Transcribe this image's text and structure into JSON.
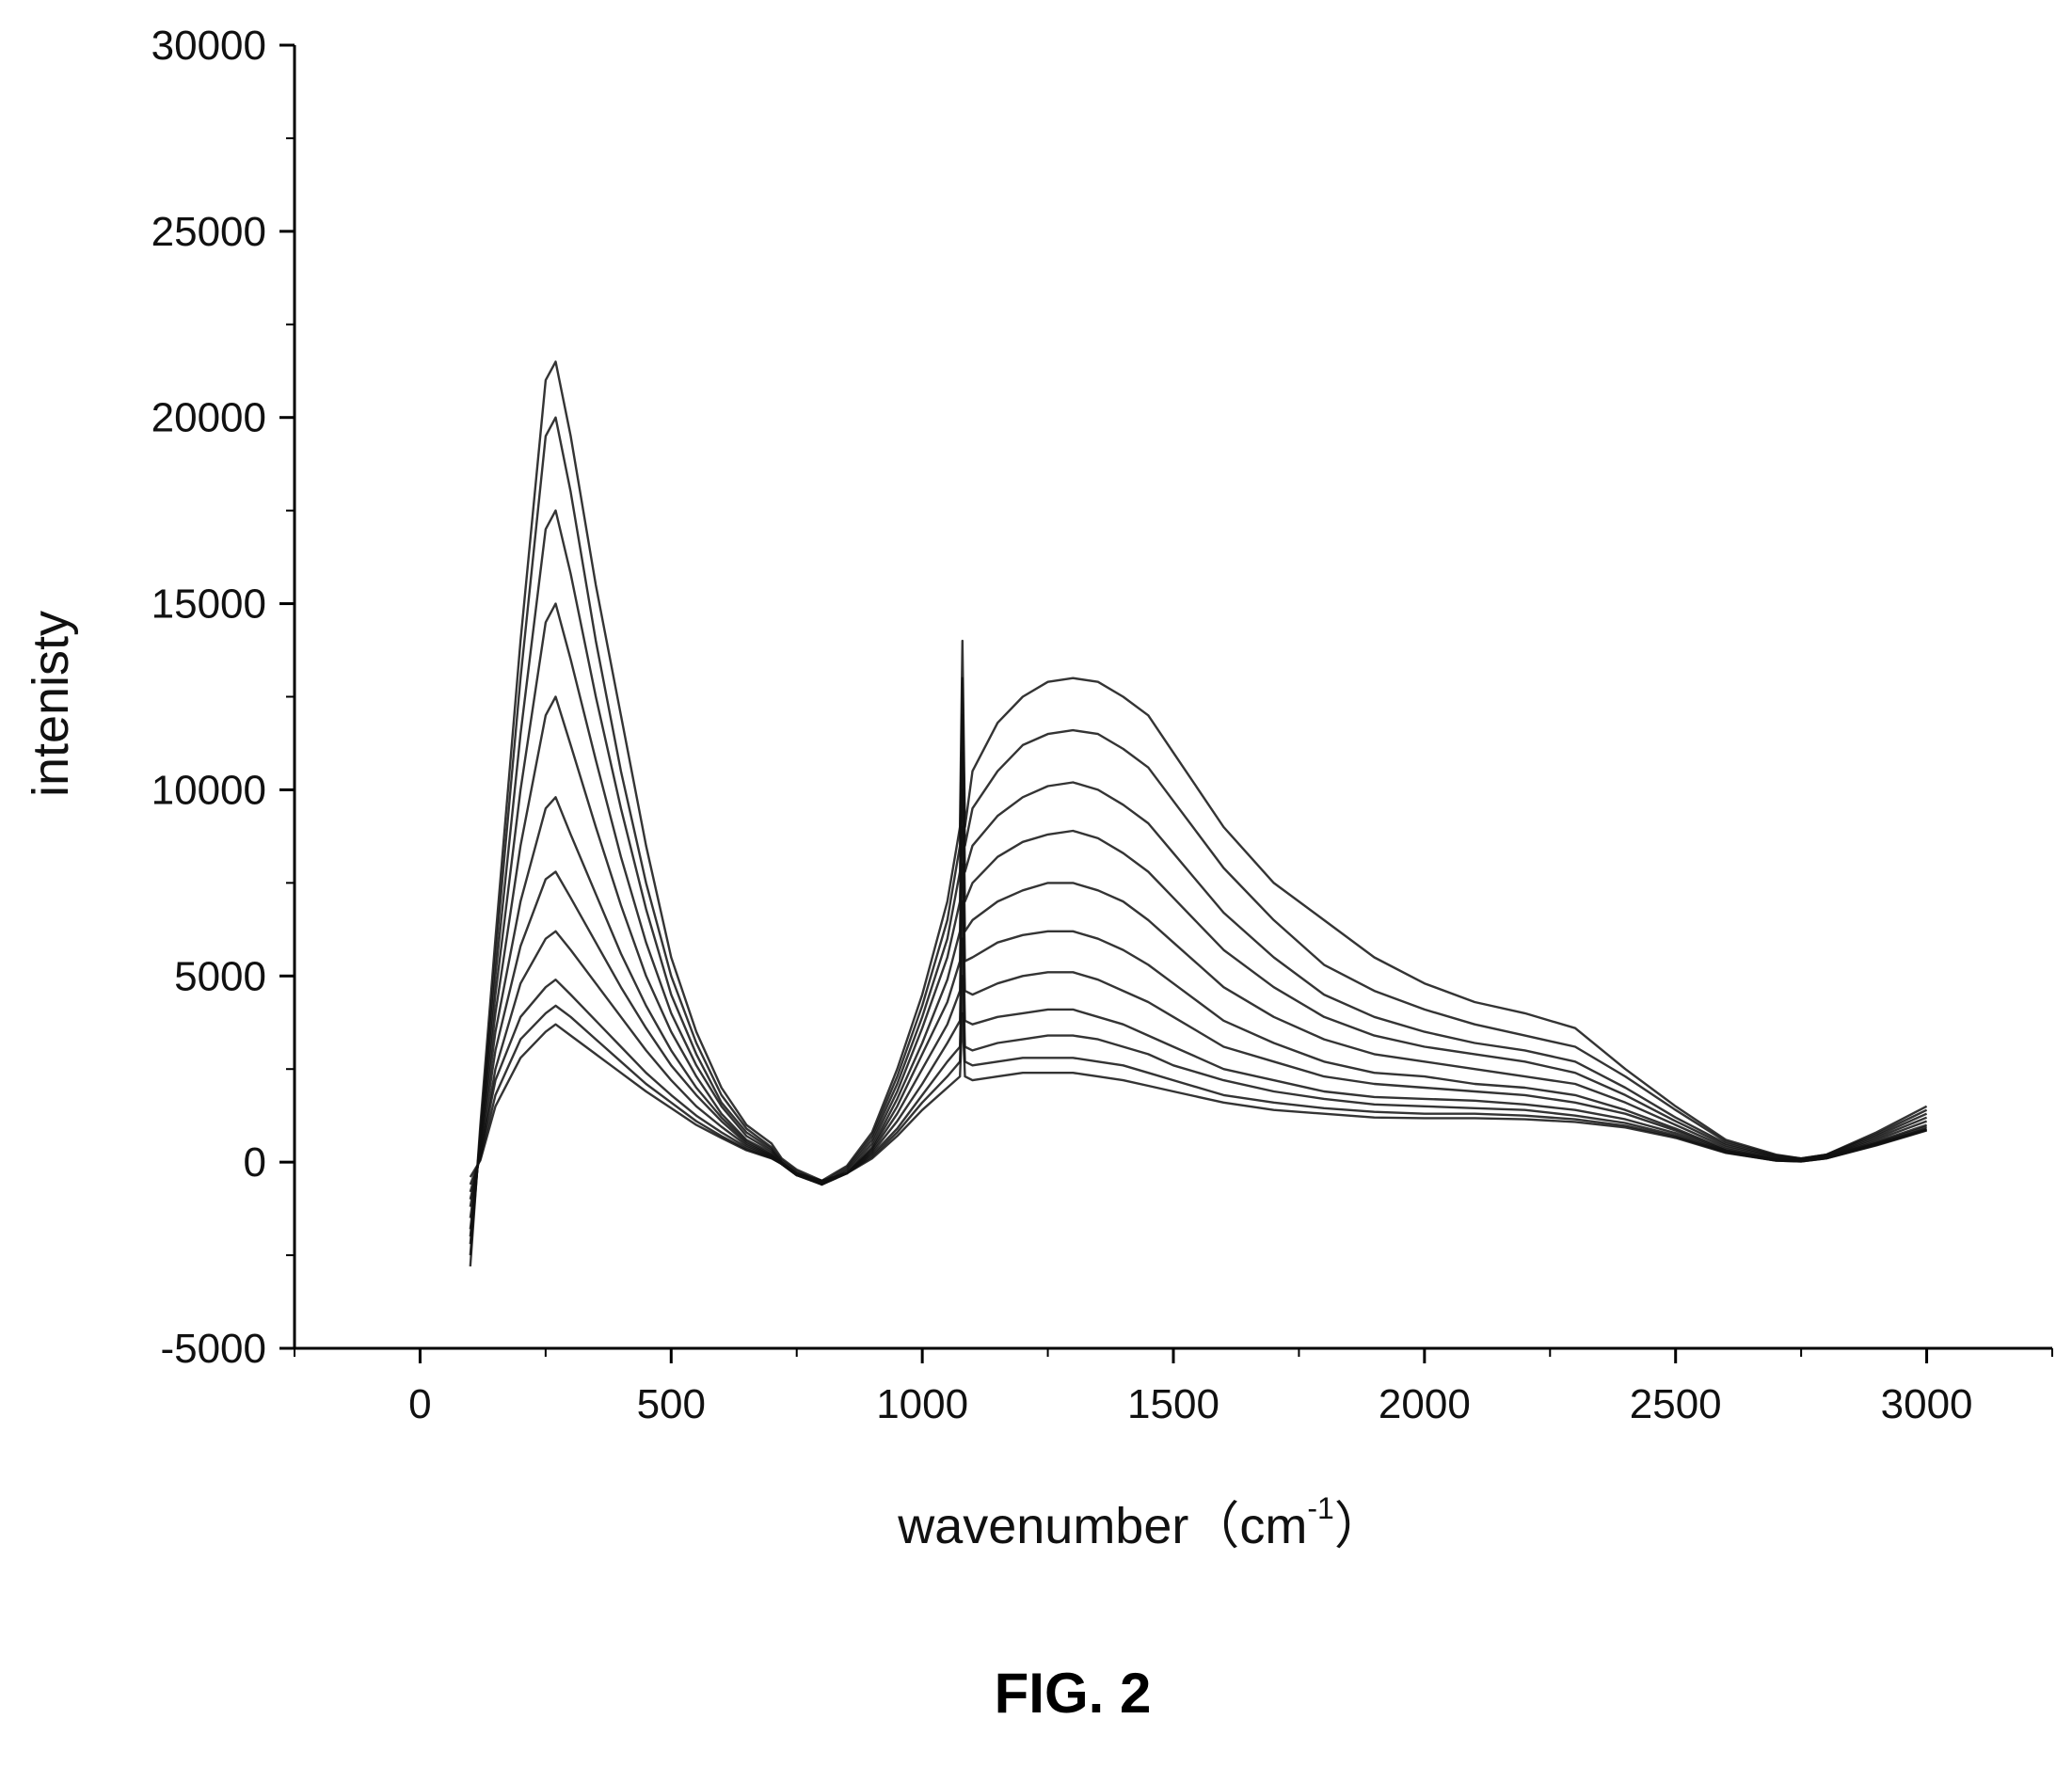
{
  "chart_data": {
    "type": "line",
    "title": "",
    "xlabel": "wavenumber（cm",
    "xlabel_sup": "-1",
    "xlabel_close": "）",
    "ylabel": "intenisty",
    "xlim": [
      -250,
      3250
    ],
    "ylim": [
      -5000,
      30000
    ],
    "x_ticks": [
      0,
      500,
      1000,
      1500,
      2000,
      2500,
      3000
    ],
    "y_ticks": [
      -5000,
      0,
      5000,
      10000,
      15000,
      20000,
      25000,
      30000
    ],
    "grid": false,
    "x": [
      100,
      120,
      150,
      200,
      250,
      270,
      300,
      350,
      400,
      450,
      500,
      550,
      600,
      650,
      700,
      720,
      750,
      800,
      850,
      900,
      950,
      1000,
      1050,
      1075,
      1080,
      1085,
      1100,
      1150,
      1200,
      1250,
      1300,
      1350,
      1400,
      1450,
      1500,
      1550,
      1600,
      1700,
      1800,
      1900,
      2000,
      2100,
      2200,
      2300,
      2400,
      2500,
      2600,
      2700,
      2750,
      2800,
      2900,
      3000
    ],
    "series": [
      {
        "values": [
          -2800,
          1000,
          6000,
          14000,
          21000,
          21500,
          19500,
          15500,
          12000,
          8500,
          5500,
          3500,
          2000,
          1000,
          500,
          100,
          -200,
          -500,
          -100,
          800,
          2500,
          4500,
          7000,
          9000,
          14000,
          9000,
          10500,
          11800,
          12500,
          12900,
          13000,
          12900,
          12500,
          12000,
          11000,
          10000,
          9000,
          7500,
          6500,
          5500,
          4800,
          4300,
          4000,
          3600,
          2500,
          1500,
          600,
          200,
          100,
          200,
          800,
          1500
        ]
      },
      {
        "values": [
          -2500,
          800,
          5500,
          13000,
          19500,
          20000,
          18000,
          14000,
          10500,
          7500,
          5000,
          3200,
          1800,
          900,
          400,
          50,
          -250,
          -550,
          -150,
          700,
          2300,
          4200,
          6500,
          8500,
          13000,
          8500,
          9500,
          10500,
          11200,
          11500,
          11600,
          11500,
          11100,
          10600,
          9700,
          8800,
          7900,
          6500,
          5300,
          4600,
          4100,
          3700,
          3400,
          3100,
          2300,
          1400,
          550,
          180,
          100,
          200,
          750,
          1400
        ]
      },
      {
        "values": [
          -2200,
          700,
          5000,
          11500,
          17000,
          17500,
          15800,
          12500,
          9500,
          6800,
          4500,
          2900,
          1600,
          800,
          350,
          0,
          -300,
          -600,
          -200,
          600,
          2100,
          3900,
          6000,
          7800,
          12000,
          7800,
          8500,
          9300,
          9800,
          10100,
          10200,
          10000,
          9600,
          9100,
          8300,
          7500,
          6700,
          5500,
          4500,
          3900,
          3500,
          3200,
          3000,
          2700,
          2000,
          1200,
          500,
          150,
          80,
          180,
          700,
          1300
        ]
      },
      {
        "values": [
          -2000,
          600,
          4500,
          10000,
          14500,
          15000,
          13500,
          10800,
          8200,
          5900,
          4000,
          2600,
          1500,
          700,
          300,
          0,
          -300,
          -600,
          -250,
          500,
          1900,
          3600,
          5500,
          7000,
          11000,
          7000,
          7500,
          8200,
          8600,
          8800,
          8900,
          8700,
          8300,
          7800,
          7100,
          6400,
          5700,
          4700,
          3900,
          3400,
          3100,
          2900,
          2700,
          2400,
          1800,
          1100,
          450,
          130,
          60,
          160,
          650,
          1200
        ]
      },
      {
        "values": [
          -1800,
          500,
          4000,
          8500,
          12000,
          12500,
          11200,
          9000,
          6900,
          5000,
          3500,
          2300,
          1300,
          600,
          250,
          -50,
          -350,
          -600,
          -300,
          400,
          1700,
          3200,
          4900,
          6200,
          10000,
          6200,
          6500,
          7000,
          7300,
          7500,
          7500,
          7300,
          7000,
          6500,
          5900,
          5300,
          4700,
          3900,
          3300,
          2900,
          2700,
          2500,
          2300,
          2100,
          1600,
          1000,
          400,
          100,
          50,
          150,
          600,
          1100
        ]
      },
      {
        "values": [
          -1500,
          400,
          3500,
          7000,
          9500,
          9800,
          8800,
          7200,
          5600,
          4200,
          3000,
          2000,
          1200,
          550,
          200,
          -50,
          -350,
          -600,
          -300,
          350,
          1500,
          2900,
          4300,
          5400,
          9000,
          5400,
          5500,
          5900,
          6100,
          6200,
          6200,
          6000,
          5700,
          5300,
          4800,
          4300,
          3800,
          3200,
          2700,
          2400,
          2300,
          2100,
          2000,
          1800,
          1400,
          900,
          350,
          80,
          40,
          140,
          550,
          1000
        ]
      },
      {
        "values": [
          -1200,
          300,
          3000,
          5800,
          7600,
          7800,
          7100,
          5900,
          4700,
          3600,
          2600,
          1800,
          1100,
          500,
          180,
          -50,
          -350,
          -550,
          -300,
          300,
          1300,
          2500,
          3700,
          4600,
          8000,
          4600,
          4500,
          4800,
          5000,
          5100,
          5100,
          4900,
          4600,
          4300,
          3900,
          3500,
          3100,
          2700,
          2300,
          2100,
          2000,
          1900,
          1800,
          1600,
          1300,
          850,
          320,
          70,
          40,
          130,
          520,
          950
        ]
      },
      {
        "values": [
          -1000,
          200,
          2500,
          4800,
          6000,
          6200,
          5700,
          4800,
          3900,
          3000,
          2200,
          1500,
          950,
          450,
          150,
          -50,
          -350,
          -550,
          -300,
          250,
          1100,
          2100,
          3200,
          3800,
          7000,
          3800,
          3700,
          3900,
          4000,
          4100,
          4100,
          3900,
          3700,
          3400,
          3100,
          2800,
          2500,
          2200,
          1900,
          1750,
          1700,
          1650,
          1550,
          1400,
          1150,
          780,
          300,
          60,
          30,
          120,
          500,
          900
        ]
      },
      {
        "values": [
          -800,
          150,
          2200,
          3900,
          4700,
          4900,
          4500,
          3800,
          3100,
          2400,
          1800,
          1250,
          800,
          400,
          130,
          -50,
          -300,
          -500,
          -300,
          200,
          900,
          1800,
          2700,
          3100,
          6000,
          3100,
          3000,
          3200,
          3300,
          3400,
          3400,
          3300,
          3100,
          2900,
          2600,
          2400,
          2200,
          1900,
          1700,
          1550,
          1500,
          1450,
          1400,
          1250,
          1050,
          720,
          280,
          50,
          30,
          110,
          480,
          880
        ]
      },
      {
        "values": [
          -600,
          100,
          1800,
          3300,
          4000,
          4200,
          3900,
          3300,
          2700,
          2100,
          1600,
          1100,
          700,
          350,
          110,
          -50,
          -300,
          -500,
          -300,
          150,
          800,
          1600,
          2300,
          2700,
          5000,
          2700,
          2600,
          2700,
          2800,
          2800,
          2800,
          2700,
          2600,
          2400,
          2200,
          2000,
          1800,
          1600,
          1450,
          1350,
          1300,
          1300,
          1250,
          1150,
          980,
          680,
          260,
          40,
          20,
          100,
          460,
          860
        ]
      },
      {
        "values": [
          -400,
          50,
          1500,
          2800,
          3500,
          3700,
          3400,
          2900,
          2400,
          1900,
          1450,
          1000,
          650,
          320,
          100,
          -50,
          -300,
          -500,
          -300,
          100,
          700,
          1400,
          2000,
          2300,
          4000,
          2300,
          2200,
          2300,
          2400,
          2400,
          2400,
          2300,
          2200,
          2050,
          1900,
          1750,
          1600,
          1400,
          1300,
          1200,
          1180,
          1180,
          1150,
          1080,
          930,
          650,
          250,
          40,
          20,
          100,
          450,
          850
        ]
      }
    ]
  },
  "figure": {
    "caption": "FIG. 2"
  }
}
